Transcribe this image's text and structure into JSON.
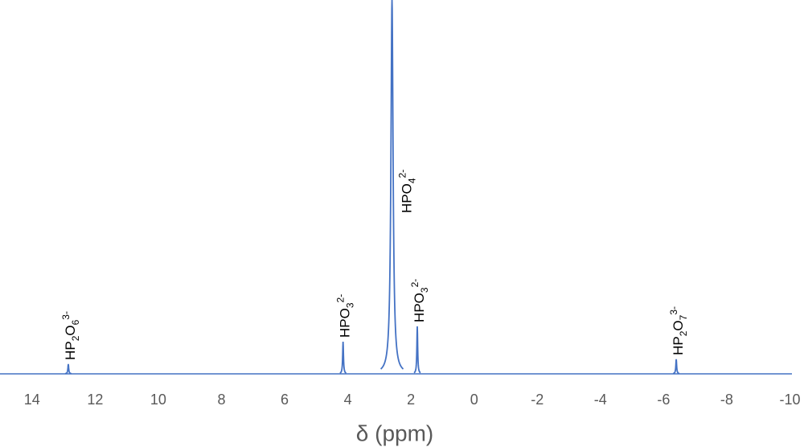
{
  "chart_data": {
    "type": "spectrum",
    "x_label": "δ (ppm)",
    "xlim": [
      15,
      -10
    ],
    "ylim": [
      0,
      100
    ],
    "xticks": [
      14,
      12,
      10,
      8,
      6,
      4,
      2,
      0,
      -2,
      -4,
      -6,
      -8,
      -10
    ],
    "color": "#4472c4",
    "series": [
      {
        "x": [
          12.85,
          4.15,
          2.6,
          1.8,
          -6.4
        ],
        "values": [
          2.6,
          8.6,
          100,
          12.7,
          3.9
        ],
        "labels": [
          [
            {
              "text": "HP",
              "style": "normal"
            },
            {
              "text": "2",
              "style": "sub"
            },
            {
              "text": "O",
              "style": "normal"
            },
            {
              "text": "6",
              "style": "sub"
            },
            {
              "text": "3-",
              "style": "sup"
            }
          ],
          [
            {
              "text": "HPO",
              "style": "normal"
            },
            {
              "text": "3",
              "style": "sub"
            },
            {
              "text": "2-",
              "style": "sup"
            }
          ],
          [
            {
              "text": "HPO",
              "style": "normal"
            },
            {
              "text": "4",
              "style": "sub"
            },
            {
              "text": "2-",
              "style": "sup"
            }
          ],
          [
            {
              "text": "HPO",
              "style": "normal"
            },
            {
              "text": "3",
              "style": "sub"
            },
            {
              "text": "2-",
              "style": "sup"
            }
          ],
          [
            {
              "text": "HP",
              "style": "normal"
            },
            {
              "text": "2",
              "style": "sub"
            },
            {
              "text": "O",
              "style": "normal"
            },
            {
              "text": "7",
              "style": "sub"
            },
            {
              "text": "3-",
              "style": "sup"
            }
          ]
        ]
      }
    ]
  }
}
